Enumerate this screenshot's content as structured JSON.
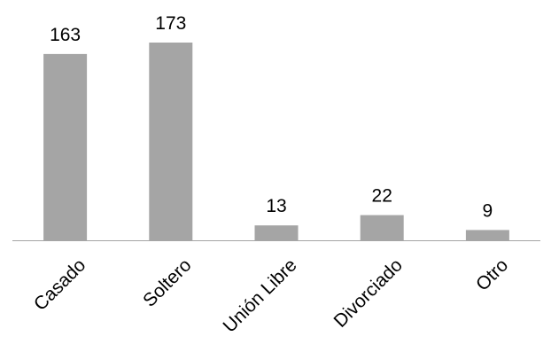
{
  "chart_data": {
    "type": "bar",
    "categories": [
      "Casado",
      "Soltero",
      "Unión Libre",
      "Divorciado",
      "Otro"
    ],
    "values": [
      163,
      173,
      13,
      22,
      9
    ],
    "title": "",
    "xlabel": "",
    "ylabel": "",
    "ylim": [
      0,
      173
    ],
    "grid": false,
    "legend": "none",
    "data_labels": true,
    "bar_color": "#a5a5a5",
    "axis_color": "#a5a5a5"
  }
}
